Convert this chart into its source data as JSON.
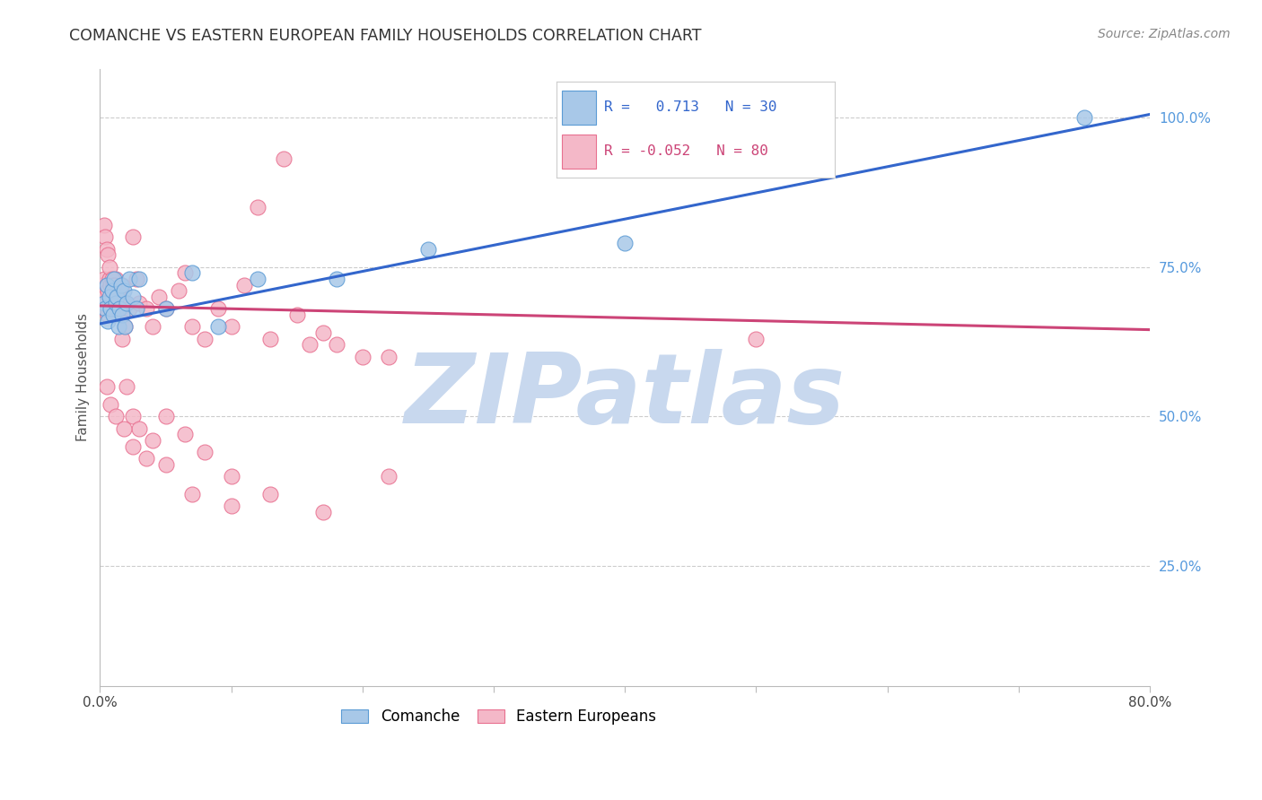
{
  "title": "COMANCHE VS EASTERN EUROPEAN FAMILY HOUSEHOLDS CORRELATION CHART",
  "source": "Source: ZipAtlas.com",
  "ylabel": "Family Households",
  "ytick_labels": [
    "100.0%",
    "75.0%",
    "50.0%",
    "25.0%"
  ],
  "ytick_values": [
    1.0,
    0.75,
    0.5,
    0.25
  ],
  "xmin": 0.0,
  "xmax": 0.8,
  "ymin": 0.05,
  "ymax": 1.08,
  "blue_R": 0.713,
  "blue_N": 30,
  "pink_R": -0.052,
  "pink_N": 80,
  "blue_color": "#a8c8e8",
  "pink_color": "#f4b8c8",
  "blue_edge_color": "#5b9bd5",
  "pink_edge_color": "#e87090",
  "blue_line_color": "#3366cc",
  "pink_line_color": "#cc4477",
  "legend_label_blue": "Comanche",
  "legend_label_pink": "Eastern Europeans",
  "watermark_color": "#c8d8ee",
  "comanche_x": [
    0.003,
    0.004,
    0.005,
    0.006,
    0.007,
    0.008,
    0.009,
    0.01,
    0.011,
    0.012,
    0.013,
    0.014,
    0.015,
    0.016,
    0.017,
    0.018,
    0.019,
    0.02,
    0.022,
    0.025,
    0.028,
    0.03,
    0.05,
    0.07,
    0.09,
    0.12,
    0.18,
    0.25,
    0.4,
    0.75
  ],
  "comanche_y": [
    0.69,
    0.68,
    0.72,
    0.66,
    0.7,
    0.68,
    0.71,
    0.67,
    0.73,
    0.69,
    0.7,
    0.65,
    0.68,
    0.72,
    0.67,
    0.71,
    0.65,
    0.69,
    0.73,
    0.7,
    0.68,
    0.73,
    0.68,
    0.74,
    0.65,
    0.73,
    0.73,
    0.78,
    0.79,
    1.0
  ],
  "eastern_x": [
    0.002,
    0.002,
    0.003,
    0.003,
    0.004,
    0.005,
    0.005,
    0.006,
    0.006,
    0.007,
    0.007,
    0.008,
    0.008,
    0.009,
    0.01,
    0.01,
    0.011,
    0.012,
    0.013,
    0.014,
    0.015,
    0.016,
    0.017,
    0.018,
    0.019,
    0.02,
    0.022,
    0.025,
    0.028,
    0.03,
    0.035,
    0.04,
    0.045,
    0.05,
    0.06,
    0.065,
    0.07,
    0.08,
    0.09,
    0.1,
    0.11,
    0.12,
    0.13,
    0.14,
    0.15,
    0.16,
    0.17,
    0.18,
    0.2,
    0.22,
    0.003,
    0.004,
    0.005,
    0.006,
    0.007,
    0.009,
    0.011,
    0.014,
    0.017,
    0.02,
    0.025,
    0.03,
    0.04,
    0.05,
    0.065,
    0.08,
    0.1,
    0.13,
    0.17,
    0.22,
    0.005,
    0.008,
    0.012,
    0.018,
    0.025,
    0.035,
    0.05,
    0.07,
    0.1,
    0.5
  ],
  "eastern_y": [
    0.69,
    0.72,
    0.68,
    0.73,
    0.7,
    0.68,
    0.72,
    0.67,
    0.71,
    0.69,
    0.73,
    0.68,
    0.72,
    0.7,
    0.68,
    0.72,
    0.69,
    0.73,
    0.68,
    0.71,
    0.69,
    0.68,
    0.72,
    0.69,
    0.65,
    0.69,
    0.68,
    0.8,
    0.73,
    0.69,
    0.68,
    0.65,
    0.7,
    0.68,
    0.71,
    0.74,
    0.65,
    0.63,
    0.68,
    0.65,
    0.72,
    0.85,
    0.63,
    0.93,
    0.67,
    0.62,
    0.64,
    0.62,
    0.6,
    0.6,
    0.82,
    0.8,
    0.78,
    0.77,
    0.75,
    0.73,
    0.72,
    0.68,
    0.63,
    0.55,
    0.5,
    0.48,
    0.46,
    0.5,
    0.47,
    0.44,
    0.4,
    0.37,
    0.34,
    0.4,
    0.55,
    0.52,
    0.5,
    0.48,
    0.45,
    0.43,
    0.42,
    0.37,
    0.35,
    0.63
  ],
  "blue_line_x0": 0.0,
  "blue_line_y0": 0.655,
  "blue_line_x1": 0.8,
  "blue_line_y1": 1.005,
  "pink_line_x0": 0.0,
  "pink_line_y0": 0.685,
  "pink_line_x1": 0.8,
  "pink_line_y1": 0.645
}
